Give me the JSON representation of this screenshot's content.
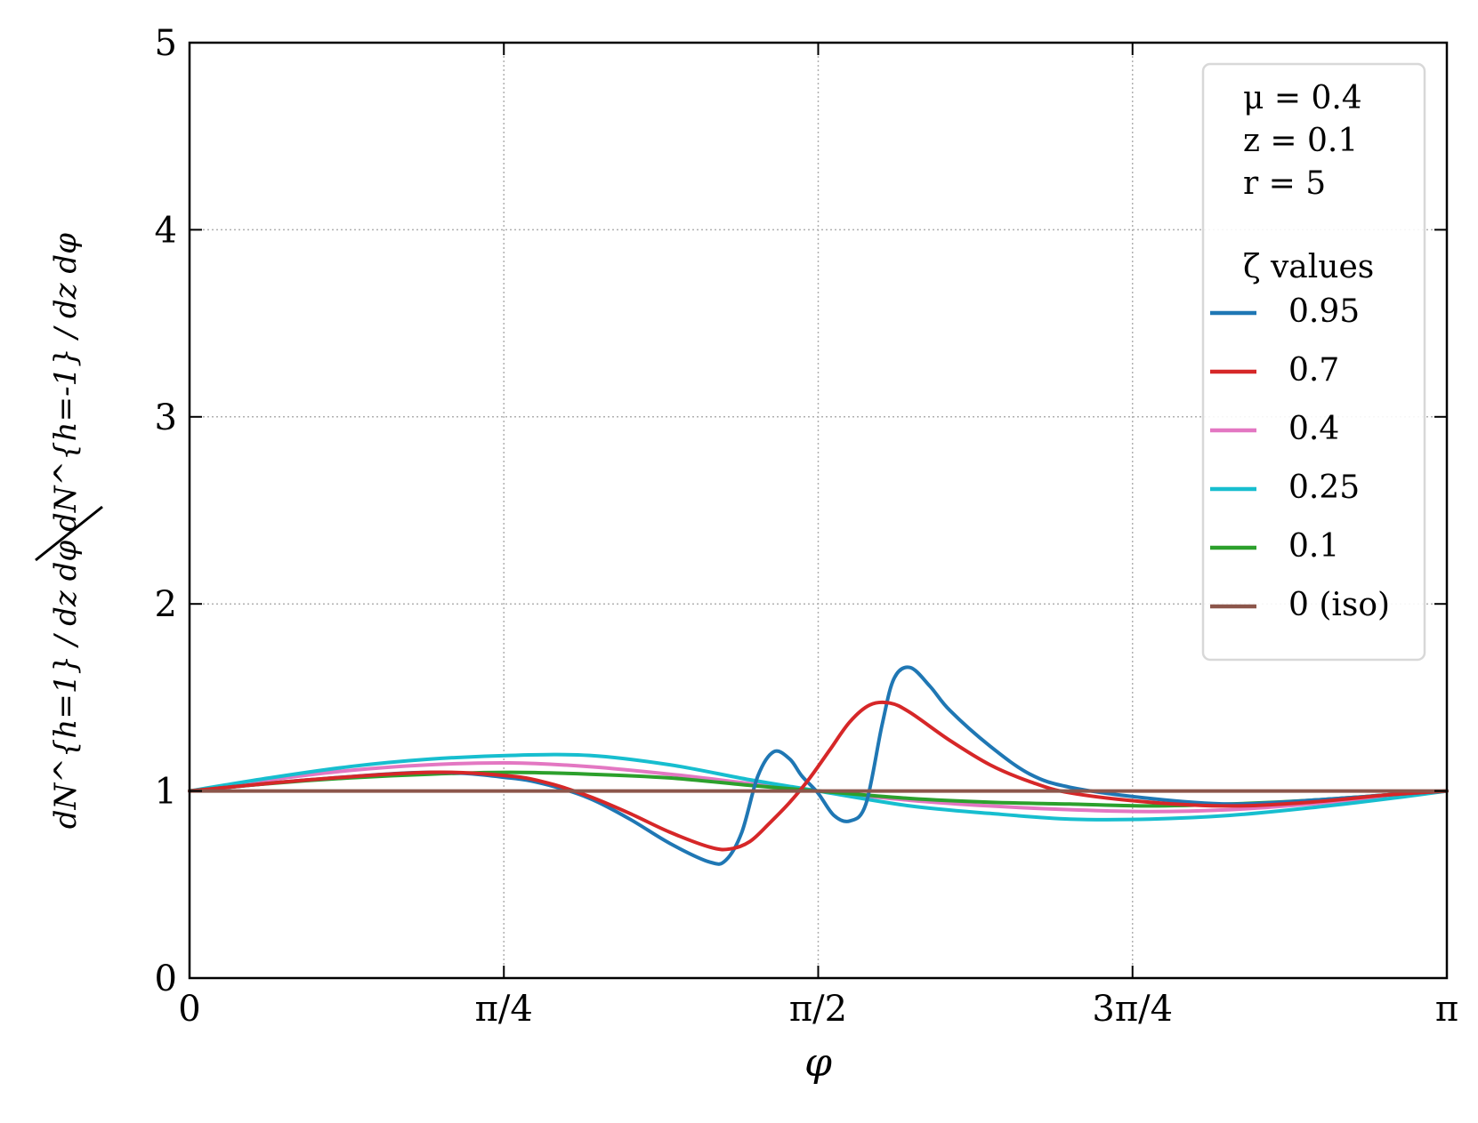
{
  "chart_data": {
    "type": "line",
    "xlabel": "φ",
    "ylabel": {
      "numerator": "dN^{h=1} / dz dφ",
      "denominator": "dN^{h=-1} / dz dφ"
    },
    "xlim": [
      0,
      3.14159
    ],
    "ylim": [
      0,
      5
    ],
    "xticks": [
      {
        "value": 0,
        "label": "0"
      },
      {
        "value": 0.7854,
        "label": "π/4"
      },
      {
        "value": 1.5708,
        "label": "π/2"
      },
      {
        "value": 2.3562,
        "label": "3π/4"
      },
      {
        "value": 3.14159,
        "label": "π"
      }
    ],
    "yticks": [
      {
        "value": 0,
        "label": "0"
      },
      {
        "value": 1,
        "label": "1"
      },
      {
        "value": 2,
        "label": "2"
      },
      {
        "value": 3,
        "label": "3"
      },
      {
        "value": 4,
        "label": "4"
      },
      {
        "value": 5,
        "label": "5"
      }
    ],
    "grid": true,
    "legend_placement": "top-right",
    "legend": {
      "params": [
        "μ = 0.4",
        "z = 0.1",
        "r = 5"
      ],
      "title": "ζ values"
    },
    "series": [
      {
        "name": "0.95",
        "color": "#1f77b4",
        "x": [
          0,
          0.3,
          0.6,
          0.8,
          0.9,
          1.0,
          1.1,
          1.2,
          1.3,
          1.34,
          1.38,
          1.42,
          1.46,
          1.5,
          1.53,
          1.57,
          1.61,
          1.65,
          1.69,
          1.73,
          1.76,
          1.8,
          1.85,
          1.9,
          2.0,
          2.1,
          2.2,
          2.4,
          2.6,
          2.8,
          3.0,
          3.14159
        ],
        "y": [
          1.0,
          1.06,
          1.1,
          1.07,
          1.03,
          0.96,
          0.85,
          0.72,
          0.62,
          0.63,
          0.78,
          1.08,
          1.21,
          1.17,
          1.08,
          0.99,
          0.87,
          0.84,
          0.93,
          1.35,
          1.6,
          1.66,
          1.56,
          1.43,
          1.24,
          1.09,
          1.02,
          0.96,
          0.93,
          0.95,
          0.98,
          1.0
        ]
      },
      {
        "name": "0.7",
        "color": "#d62728",
        "x": [
          0,
          0.3,
          0.6,
          0.8,
          0.9,
          1.0,
          1.1,
          1.2,
          1.3,
          1.35,
          1.4,
          1.45,
          1.5,
          1.55,
          1.6,
          1.65,
          1.7,
          1.75,
          1.8,
          1.9,
          2.0,
          2.1,
          2.2,
          2.4,
          2.6,
          2.8,
          3.0,
          3.14159
        ],
        "y": [
          1.0,
          1.06,
          1.1,
          1.08,
          1.04,
          0.97,
          0.88,
          0.78,
          0.7,
          0.69,
          0.73,
          0.83,
          0.94,
          1.07,
          1.22,
          1.37,
          1.46,
          1.47,
          1.42,
          1.27,
          1.14,
          1.05,
          0.99,
          0.94,
          0.92,
          0.94,
          0.98,
          1.0
        ]
      },
      {
        "name": "0.4",
        "color": "#e377c2",
        "x": [
          0,
          0.2,
          0.4,
          0.6,
          0.8,
          1.0,
          1.2,
          1.4,
          1.5708,
          1.8,
          2.0,
          2.2,
          2.4,
          2.6,
          2.8,
          3.0,
          3.14159
        ],
        "y": [
          1.0,
          1.06,
          1.11,
          1.14,
          1.15,
          1.13,
          1.09,
          1.04,
          1.0,
          0.95,
          0.92,
          0.9,
          0.89,
          0.9,
          0.93,
          0.97,
          1.0
        ]
      },
      {
        "name": "0.25",
        "color": "#17becf",
        "x": [
          0,
          0.2,
          0.4,
          0.6,
          0.8,
          1.0,
          1.2,
          1.4,
          1.5708,
          1.8,
          2.0,
          2.2,
          2.4,
          2.6,
          2.8,
          3.0,
          3.14159
        ],
        "y": [
          1.0,
          1.07,
          1.13,
          1.17,
          1.19,
          1.19,
          1.14,
          1.06,
          1.0,
          0.92,
          0.88,
          0.85,
          0.85,
          0.87,
          0.91,
          0.96,
          1.0
        ]
      },
      {
        "name": "0.1",
        "color": "#2ca02c",
        "x": [
          0,
          0.2,
          0.4,
          0.6,
          0.8,
          1.0,
          1.2,
          1.4,
          1.5708,
          1.8,
          2.0,
          2.2,
          2.4,
          2.6,
          2.8,
          3.0,
          3.14159
        ],
        "y": [
          1.0,
          1.04,
          1.07,
          1.09,
          1.1,
          1.09,
          1.07,
          1.03,
          1.0,
          0.96,
          0.94,
          0.93,
          0.92,
          0.93,
          0.95,
          0.98,
          1.0
        ]
      },
      {
        "name": "0 (iso)",
        "color": "#8c564b",
        "x": [
          0,
          3.14159
        ],
        "y": [
          1.0,
          1.0
        ]
      }
    ]
  }
}
